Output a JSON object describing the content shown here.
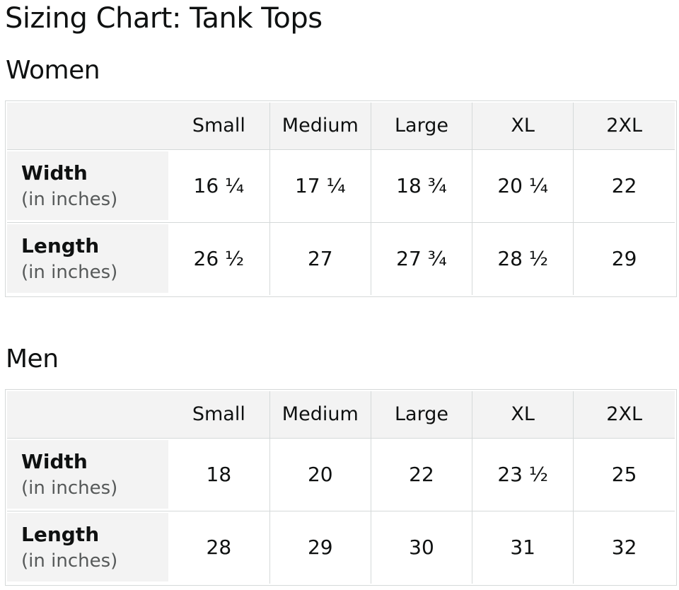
{
  "page": {
    "title": "Sizing Chart: Tank Tops"
  },
  "colors": {
    "header_background": "#F3F3F3",
    "label_cell_background": "#F3F3F3",
    "border": "#D5D9D9",
    "text": "#0F1111",
    "unit_text": "#565959"
  },
  "sections": [
    {
      "title": "Women",
      "columns": [
        "Small",
        "Medium",
        "Large",
        "XL",
        "2XL"
      ],
      "rows": [
        {
          "label": "Width",
          "sublabel": "(in inches)",
          "values": [
            "16 ¼",
            "17 ¼",
            "18 ¾",
            "20 ¼",
            "22"
          ]
        },
        {
          "label": "Length",
          "sublabel": "(in inches)",
          "values": [
            "26 ½",
            "27",
            "27 ¾",
            "28 ½",
            "29"
          ]
        }
      ]
    },
    {
      "title": "Men",
      "columns": [
        "Small",
        "Medium",
        "Large",
        "XL",
        "2XL"
      ],
      "rows": [
        {
          "label": "Width",
          "sublabel": "(in inches)",
          "values": [
            "18",
            "20",
            "22",
            "23 ½",
            "25"
          ]
        },
        {
          "label": "Length",
          "sublabel": "(in inches)",
          "values": [
            "28",
            "29",
            "30",
            "31",
            "32"
          ]
        }
      ]
    }
  ]
}
